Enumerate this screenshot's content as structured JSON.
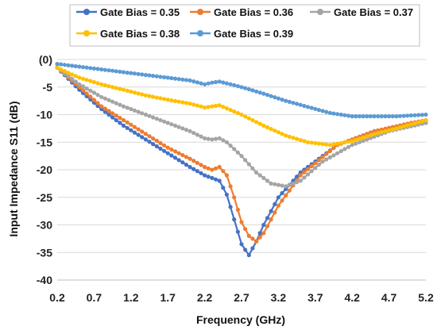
{
  "chart_data": {
    "type": "line",
    "title": "",
    "xlabel": "Frequency (GHz)",
    "ylabel": "Input Impedance S11 (dB)",
    "xlim": [
      0.2,
      5.2
    ],
    "ylim": [
      -40,
      0
    ],
    "x_tick_labels": [
      "0.2",
      "0.7",
      "1.2",
      "1.7",
      "2.2",
      "2.7",
      "3.2",
      "3.7",
      "4.2",
      "4.7",
      "5.2"
    ],
    "y_tick_labels": [
      "(0)",
      "-5",
      "-10",
      "-15",
      "-20",
      "-25",
      "-30",
      "-35",
      "-40"
    ],
    "x_tick_values": [
      0.2,
      0.7,
      1.2,
      1.7,
      2.2,
      2.7,
      3.2,
      3.7,
      4.2,
      4.7,
      5.2
    ],
    "y_tick_values": [
      0,
      -5,
      -10,
      -15,
      -20,
      -25,
      -30,
      -35,
      -40
    ],
    "grid": "horizontal",
    "legend_position": "top",
    "series": [
      {
        "name": "Gate Bias = 0.35",
        "color": "#4472C4",
        "x": [
          0.2,
          0.5,
          0.8,
          1.1,
          1.4,
          1.7,
          2.0,
          2.2,
          2.3,
          2.4,
          2.5,
          2.6,
          2.7,
          2.8,
          2.9,
          3.0,
          3.2,
          3.5,
          4.0,
          4.5,
          5.0,
          5.2
        ],
        "y": [
          -1.5,
          -5.5,
          -9.0,
          -12.0,
          -14.5,
          -17.0,
          -19.5,
          -21.0,
          -21.5,
          -22.0,
          -24.5,
          -29.0,
          -33.5,
          -35.5,
          -33.0,
          -30.0,
          -25.0,
          -20.5,
          -15.5,
          -13.0,
          -12.0,
          -11.5
        ]
      },
      {
        "name": "Gate Bias = 0.36",
        "color": "#ED7D31",
        "x": [
          0.2,
          0.5,
          0.8,
          1.1,
          1.4,
          1.7,
          2.0,
          2.2,
          2.3,
          2.4,
          2.5,
          2.6,
          2.7,
          2.8,
          2.9,
          3.0,
          3.2,
          3.5,
          4.0,
          4.5,
          5.0,
          5.2
        ],
        "y": [
          -1.5,
          -5.0,
          -8.5,
          -11.0,
          -13.5,
          -16.0,
          -18.0,
          -19.5,
          -20.0,
          -19.5,
          -21.0,
          -25.0,
          -29.5,
          -32.0,
          -33.0,
          -31.5,
          -26.5,
          -21.0,
          -15.5,
          -13.0,
          -11.5,
          -11.0
        ]
      },
      {
        "name": "Gate Bias = 0.37",
        "color": "#A5A5A5",
        "x": [
          0.2,
          0.5,
          0.8,
          1.1,
          1.4,
          1.7,
          2.0,
          2.2,
          2.3,
          2.4,
          2.5,
          2.7,
          2.9,
          3.1,
          3.3,
          3.5,
          3.8,
          4.2,
          4.7,
          5.2
        ],
        "y": [
          -1.5,
          -4.5,
          -6.8,
          -8.5,
          -10.0,
          -11.5,
          -13.0,
          -14.3,
          -14.5,
          -14.3,
          -15.0,
          -17.5,
          -20.5,
          -22.5,
          -23.0,
          -22.0,
          -18.5,
          -15.5,
          -13.0,
          -11.5
        ]
      },
      {
        "name": "Gate Bias = 0.38",
        "color": "#FFC000",
        "x": [
          0.2,
          0.5,
          0.8,
          1.1,
          1.4,
          1.7,
          2.0,
          2.2,
          2.3,
          2.4,
          2.7,
          3.0,
          3.3,
          3.6,
          3.9,
          4.2,
          4.5,
          4.8,
          5.2
        ],
        "y": [
          -1.5,
          -3.3,
          -4.5,
          -5.5,
          -6.5,
          -7.3,
          -8.0,
          -8.7,
          -8.5,
          -8.3,
          -10.0,
          -12.0,
          -13.8,
          -15.0,
          -15.5,
          -14.8,
          -13.5,
          -12.5,
          -11.0
        ]
      },
      {
        "name": "Gate Bias = 0.39",
        "color": "#5B9BD5",
        "x": [
          0.2,
          0.5,
          0.8,
          1.1,
          1.4,
          1.7,
          2.0,
          2.2,
          2.3,
          2.4,
          2.7,
          3.0,
          3.3,
          3.6,
          3.9,
          4.2,
          4.5,
          4.8,
          5.2
        ],
        "y": [
          -0.8,
          -1.3,
          -1.8,
          -2.3,
          -2.8,
          -3.3,
          -3.8,
          -4.5,
          -4.2,
          -4.0,
          -5.0,
          -6.2,
          -7.5,
          -8.6,
          -9.7,
          -10.3,
          -10.3,
          -10.3,
          -10.0
        ]
      }
    ]
  }
}
